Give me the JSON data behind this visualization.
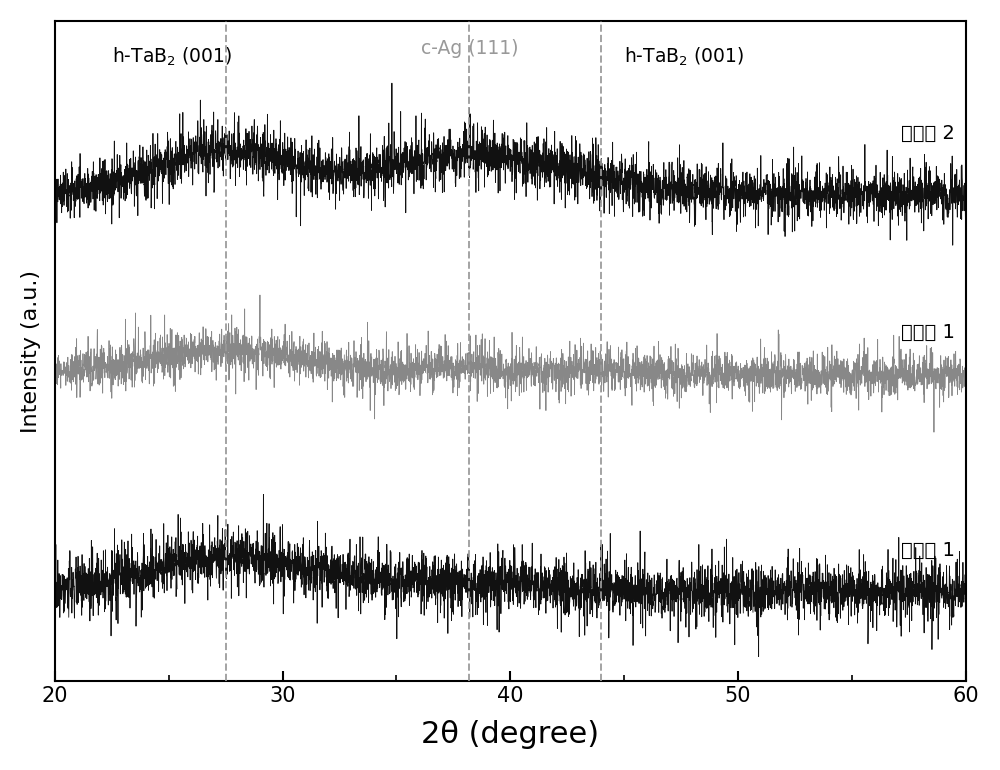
{
  "xlabel": "2θ (degree)",
  "ylabel": "Intensity (a.u.)",
  "xlim": [
    20,
    60
  ],
  "dashed_lines": [
    27.5,
    38.2,
    44.0
  ],
  "label_hTaB2_left": "h-TaB$_2$ (001)",
  "label_cAg": "c-Ag (111)",
  "label_hTaB2_right": "h-TaB$_2$ (001)",
  "curve_labels": [
    "实施例 2",
    "实施例 1",
    "对比例 1"
  ],
  "curve_colors": [
    "#111111",
    "#888888",
    "#111111"
  ],
  "background_color": "#ffffff",
  "figsize": [
    10.0,
    7.7
  ],
  "dpi": 100
}
